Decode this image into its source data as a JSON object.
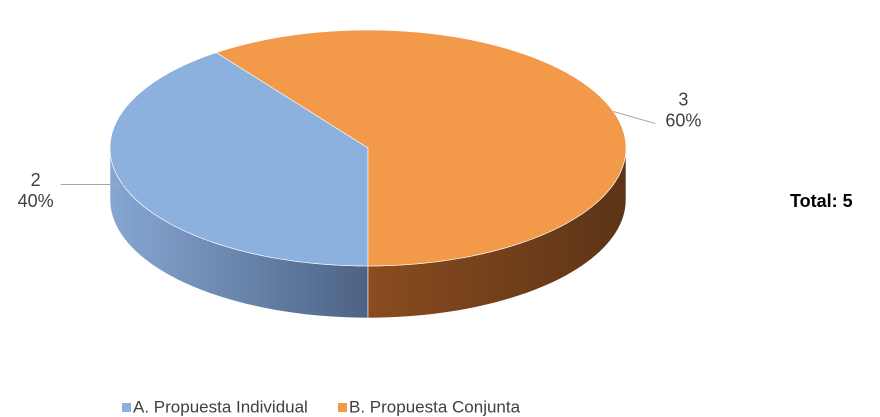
{
  "chart_data": {
    "type": "pie3d",
    "categories": [
      "A. Propuesta Individual",
      "B. Propuesta Conjunta"
    ],
    "values": [
      2,
      3
    ],
    "percent_labels": [
      "40%",
      "60%"
    ],
    "colors": [
      "#8db1de",
      "#f39a4a"
    ],
    "annotation": "Total: 5",
    "legend": "bottom"
  }
}
